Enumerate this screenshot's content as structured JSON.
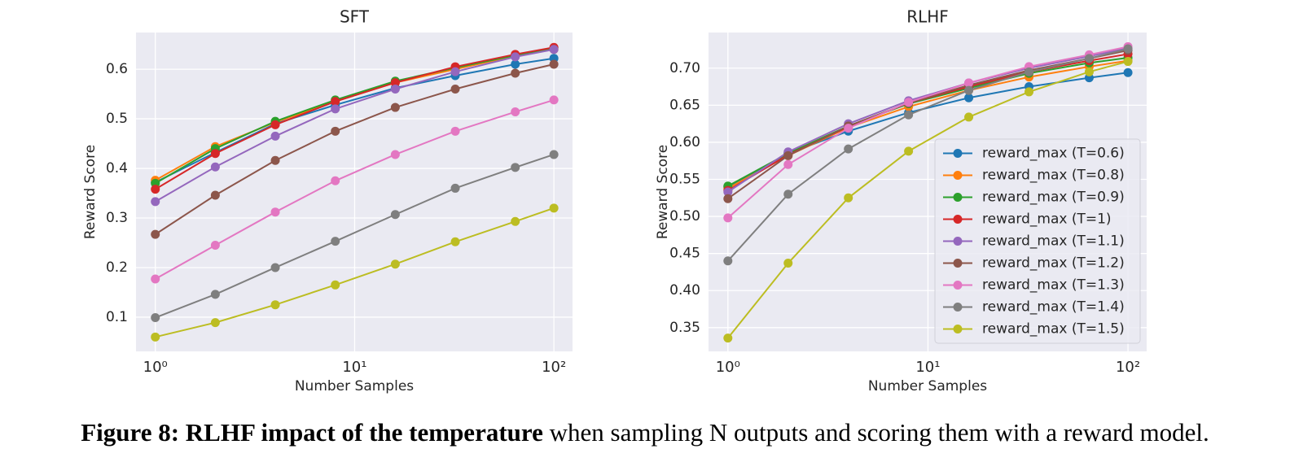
{
  "chart_data": [
    {
      "type": "line",
      "title": "SFT",
      "xlabel": "Number Samples",
      "ylabel": "Reward Score",
      "xscale": "log",
      "grid": true,
      "legend": false,
      "x": [
        1,
        2,
        4,
        8,
        16,
        32,
        64,
        100
      ],
      "xlim": [
        0.8,
        124
      ],
      "xticks": [
        {
          "value": 1,
          "label": "10⁰"
        },
        {
          "value": 10,
          "label": "10¹"
        },
        {
          "value": 100,
          "label": "10²"
        }
      ],
      "ylim": [
        0.031,
        0.674
      ],
      "yticks": [
        0.1,
        0.2,
        0.3,
        0.4,
        0.5,
        0.6
      ],
      "series": [
        {
          "color": "#1f77b4",
          "values": [
            0.372,
            0.432,
            0.49,
            0.528,
            0.562,
            0.587,
            0.61,
            0.622
          ]
        },
        {
          "color": "#ff7f0e",
          "values": [
            0.376,
            0.444,
            0.493,
            0.535,
            0.573,
            0.6,
            0.627,
            0.64
          ]
        },
        {
          "color": "#2ca02c",
          "values": [
            0.37,
            0.44,
            0.495,
            0.538,
            0.576,
            0.603,
            0.628,
            0.643
          ]
        },
        {
          "color": "#d62728",
          "values": [
            0.358,
            0.43,
            0.488,
            0.535,
            0.573,
            0.605,
            0.63,
            0.644
          ]
        },
        {
          "color": "#9467bd",
          "values": [
            0.333,
            0.403,
            0.465,
            0.52,
            0.56,
            0.595,
            0.625,
            0.64
          ]
        },
        {
          "color": "#8c564b",
          "values": [
            0.267,
            0.346,
            0.416,
            0.475,
            0.523,
            0.56,
            0.592,
            0.61
          ]
        },
        {
          "color": "#e377c2",
          "values": [
            0.177,
            0.245,
            0.312,
            0.375,
            0.428,
            0.475,
            0.514,
            0.538
          ]
        },
        {
          "color": "#7f7f7f",
          "values": [
            0.099,
            0.146,
            0.2,
            0.253,
            0.307,
            0.36,
            0.402,
            0.428
          ]
        },
        {
          "color": "#bcbd22",
          "values": [
            0.06,
            0.089,
            0.125,
            0.165,
            0.207,
            0.252,
            0.293,
            0.32
          ]
        }
      ]
    },
    {
      "type": "line",
      "title": "RLHF",
      "xlabel": "Number Samples",
      "ylabel": "Reward Score",
      "xscale": "log",
      "grid": true,
      "legend": "lower right",
      "x": [
        1,
        2,
        4,
        8,
        16,
        32,
        64,
        100
      ],
      "xlim": [
        0.8,
        124
      ],
      "xticks": [
        {
          "value": 1,
          "label": "10⁰"
        },
        {
          "value": 10,
          "label": "10¹"
        },
        {
          "value": 100,
          "label": "10²"
        }
      ],
      "ylim": [
        0.318,
        0.748
      ],
      "yticks": [
        0.35,
        {
          "value": 0.4,
          "label": "0.40"
        },
        0.45,
        {
          "value": 0.5,
          "label": "0.50"
        },
        0.55,
        {
          "value": 0.6,
          "label": "0.60"
        },
        0.65,
        {
          "value": 0.7,
          "label": "0.70"
        }
      ],
      "series": [
        {
          "name": "reward_max (T=0.6)",
          "color": "#1f77b4",
          "values": [
            0.54,
            0.585,
            0.615,
            0.64,
            0.66,
            0.675,
            0.687,
            0.694
          ]
        },
        {
          "name": "reward_max (T=0.8)",
          "color": "#ff7f0e",
          "values": [
            0.538,
            0.582,
            0.62,
            0.648,
            0.67,
            0.688,
            0.702,
            0.71
          ]
        },
        {
          "name": "reward_max (T=0.9)",
          "color": "#2ca02c",
          "values": [
            0.541,
            0.585,
            0.622,
            0.652,
            0.673,
            0.693,
            0.707,
            0.714
          ]
        },
        {
          "name": "reward_max (T=1)",
          "color": "#d62728",
          "values": [
            0.535,
            0.583,
            0.621,
            0.653,
            0.675,
            0.695,
            0.71,
            0.719
          ]
        },
        {
          "name": "reward_max (T=1.1)",
          "color": "#9467bd",
          "values": [
            0.533,
            0.587,
            0.625,
            0.656,
            0.68,
            0.7,
            0.716,
            0.727
          ]
        },
        {
          "name": "reward_max (T=1.2)",
          "color": "#8c564b",
          "values": [
            0.524,
            0.582,
            0.622,
            0.653,
            0.677,
            0.697,
            0.713,
            0.724
          ]
        },
        {
          "name": "reward_max (T=1.3)",
          "color": "#e377c2",
          "values": [
            0.498,
            0.57,
            0.619,
            0.654,
            0.68,
            0.702,
            0.718,
            0.729
          ]
        },
        {
          "name": "reward_max (T=1.4)",
          "color": "#7f7f7f",
          "values": [
            0.44,
            0.53,
            0.591,
            0.637,
            0.67,
            0.695,
            0.713,
            0.726
          ]
        },
        {
          "name": "reward_max (T=1.5)",
          "color": "#bcbd22",
          "values": [
            0.336,
            0.437,
            0.525,
            0.588,
            0.634,
            0.668,
            0.695,
            0.709
          ]
        }
      ]
    }
  ],
  "caption": {
    "label": "Figure 8:",
    "bold": "RLHF impact of the temperature",
    "text": "when sampling N outputs and scoring them with a reward model."
  }
}
